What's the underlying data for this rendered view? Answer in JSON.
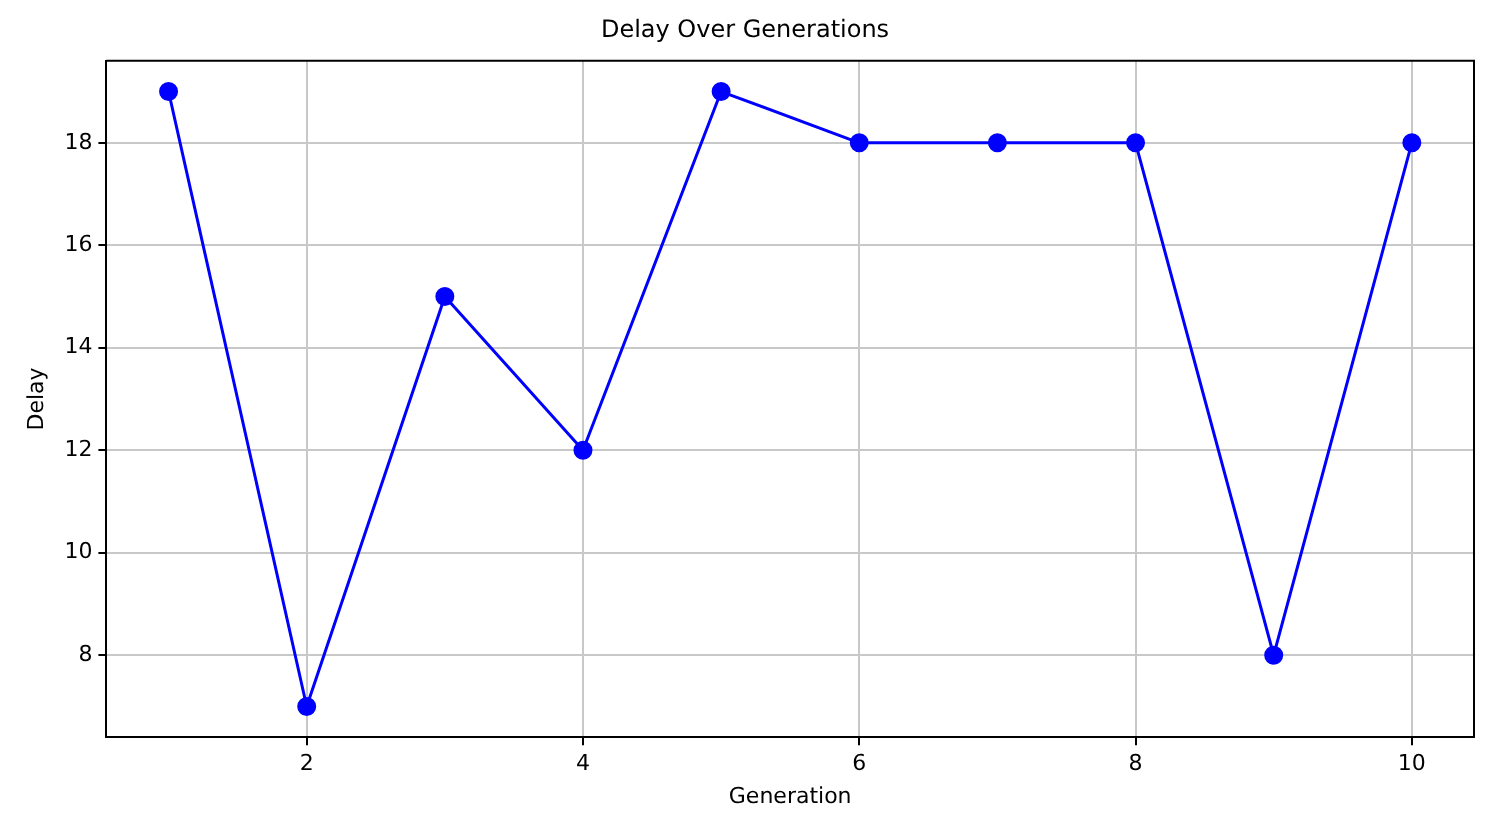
{
  "chart_data": {
    "type": "line",
    "title": "Delay Over Generations",
    "xlabel": "Generation",
    "ylabel": "Delay",
    "x": [
      1,
      2,
      3,
      4,
      5,
      6,
      7,
      8,
      9,
      10
    ],
    "series": [
      {
        "color": "#0000ff",
        "values": [
          19,
          7,
          15,
          12,
          19,
          18,
          18,
          18,
          8,
          18
        ]
      }
    ],
    "xlim": [
      0.55,
      10.45
    ],
    "xticks": [
      2,
      4,
      6,
      8,
      10
    ],
    "ylim": [
      6.4,
      19.6
    ],
    "yticks": [
      8,
      10,
      12,
      14,
      16,
      18
    ],
    "grid": true,
    "marker": "circle",
    "line_style": "solid",
    "legend": false
  }
}
